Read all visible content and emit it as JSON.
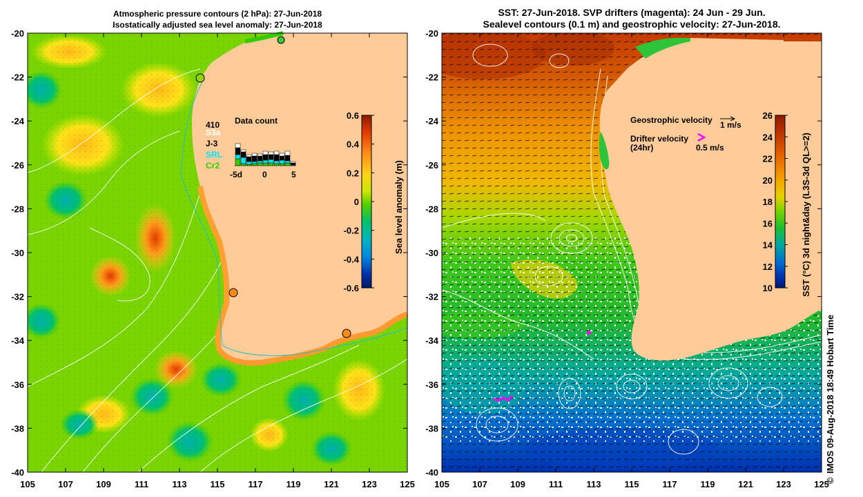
{
  "left_panel": {
    "title_line1": "Atmospheric pressure contours (2 hPa): 27-Jun-2018",
    "title_line2": "Isostatically adjusted sea level anomaly: 27-Jun-2018",
    "x_ticks": [
      "105",
      "107",
      "109",
      "111",
      "113",
      "115",
      "117",
      "119",
      "121",
      "123",
      "125"
    ],
    "y_ticks": [
      "-20",
      "-22",
      "-24",
      "-26",
      "-28",
      "-30",
      "-32",
      "-34",
      "-36",
      "-38",
      "-40"
    ],
    "colorbar": {
      "label": "Sea level anomaly (m)",
      "ticks": [
        "0.6",
        "0.4",
        "0.2",
        "0",
        "-0.2",
        "-0.4",
        "-0.6"
      ],
      "colors": [
        "#8b1a00",
        "#e23b00",
        "#ff8c1a",
        "#ffd11a",
        "#c9e800",
        "#4fcf00",
        "#00c070",
        "#00b5c0",
        "#0088e0",
        "#0033aa",
        "#001a66"
      ]
    },
    "data_count": {
      "title": "Data count",
      "count": "410",
      "missions": [
        {
          "name": "S3a",
          "color": "#ffffff"
        },
        {
          "name": "J-3",
          "color": "#000000"
        },
        {
          "name": "SRL",
          "color": "#00e5ff"
        },
        {
          "name": "Cr2",
          "color": "#33cc00"
        }
      ],
      "x_labels": [
        "-5d",
        "0",
        "5"
      ]
    }
  },
  "right_panel": {
    "title_line1": "SST: 27-Jun-2018. SVP drifters (magenta): 24 Jun - 29 Jun.",
    "title_line2": "Sealevel contours (0.1 m) and geostrophic velocity: 27-Jun-2018.",
    "x_ticks": [
      "105",
      "107",
      "109",
      "111",
      "113",
      "115",
      "117",
      "119",
      "121",
      "123",
      "125"
    ],
    "y_ticks": [
      "-20",
      "-22",
      "-24",
      "-26",
      "-28",
      "-30",
      "-32",
      "-34",
      "-36",
      "-38",
      "-40"
    ],
    "geostrophic_label": "Geostrophic velocity",
    "geostrophic_speed": "1 m/s",
    "drifter_label_1": "Drifter velocity",
    "drifter_label_2": "(24hr)",
    "drifter_speed": "0.5 m/s",
    "colorbar": {
      "label": "SST (°C) 3d night&day (L3S-3d QL>=2)",
      "ticks": [
        "26",
        "24",
        "22",
        "20",
        "18",
        "16",
        "14",
        "12",
        "10"
      ],
      "colors": [
        "#8b1a00",
        "#c43a00",
        "#e86a00",
        "#f5a200",
        "#e8d000",
        "#7fd400",
        "#1fbf30",
        "#00a8a0",
        "#0070d0",
        "#0033b0",
        "#001a70"
      ]
    }
  },
  "credit": "IMOS 09-Aug-2018 18:49 Hobart Time",
  "copyright": "©"
}
